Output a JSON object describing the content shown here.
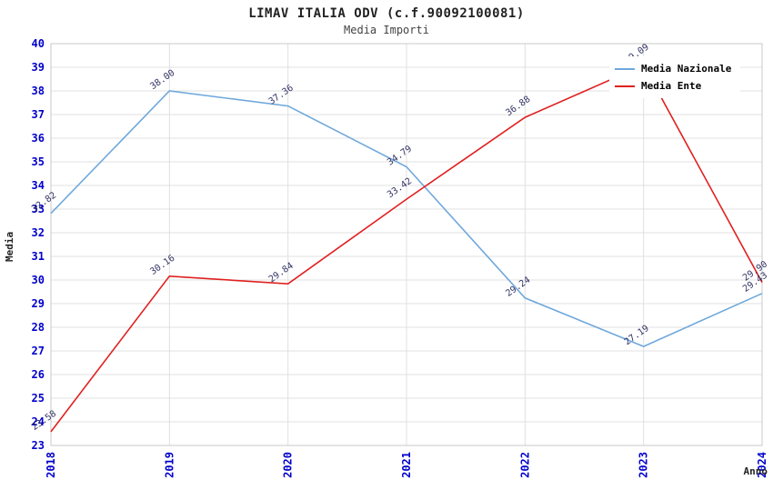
{
  "chart_data": {
    "type": "line",
    "title": "LIMAV ITALIA ODV (c.f.90092100081)",
    "subtitle": "Media Importi",
    "xlabel": "Anno",
    "ylabel": "Media",
    "ylim": [
      23,
      40
    ],
    "ytick_step": 1,
    "categories": [
      "2018",
      "2019",
      "2020",
      "2021",
      "2022",
      "2023",
      "2024"
    ],
    "series": [
      {
        "name": "Media Nazionale",
        "color": "#6fa8dc",
        "values": [
          32.82,
          38.0,
          37.36,
          34.79,
          29.24,
          27.19,
          29.43
        ]
      },
      {
        "name": "Media Ente",
        "color": "#e02020",
        "values": [
          23.58,
          30.16,
          29.84,
          33.42,
          36.88,
          39.09,
          29.9
        ]
      }
    ],
    "legend_position": "top-right",
    "grid": true
  },
  "colors": {
    "tick_label": "#0000cc",
    "point_label": "#333366",
    "grid": "#e0e0e0",
    "frame": "#c8c8c8",
    "title": "#222222",
    "subtitle": "#444444",
    "background": "#ffffff"
  }
}
